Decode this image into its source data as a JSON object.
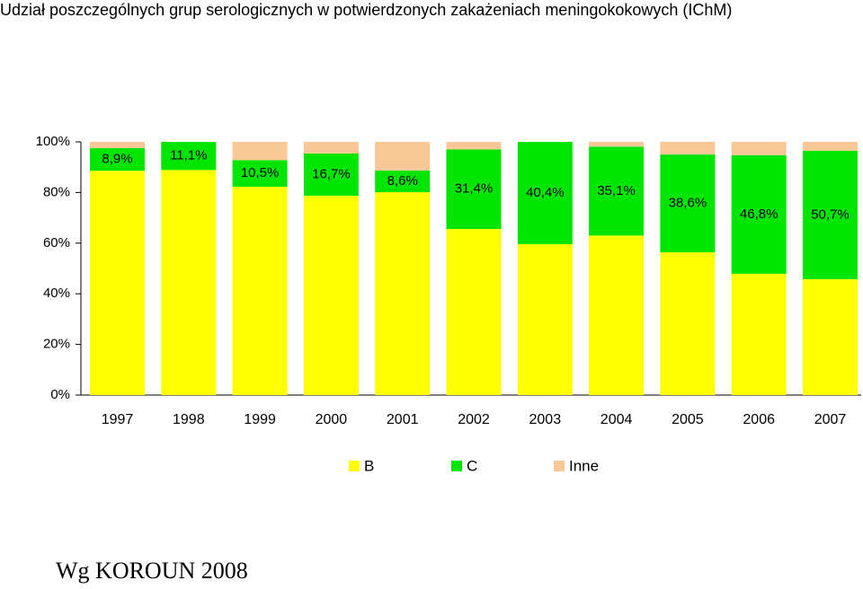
{
  "chart_data": {
    "type": "stacked_bar",
    "title": "Udział poszczególnych grup serologicznych w potwierdzonych zakażeniach meningokokowych (IChM)",
    "categories": [
      "1997",
      "1998",
      "1999",
      "2000",
      "2001",
      "2002",
      "2003",
      "2004",
      "2005",
      "2006",
      "2007"
    ],
    "series": [
      {
        "name": "B",
        "color": "#ffff00",
        "values": [
          88.6,
          88.9,
          82.3,
          78.7,
          80.1,
          65.6,
          59.6,
          63.0,
          56.4,
          47.9,
          45.8
        ]
      },
      {
        "name": "C",
        "color": "#00e600",
        "values": [
          8.9,
          11.1,
          10.5,
          16.7,
          8.6,
          31.4,
          40.4,
          35.1,
          38.6,
          46.8,
          50.7
        ],
        "value_labels": [
          "8,9%",
          "11,1%",
          "10,5%",
          "16,7%",
          "8,6%",
          "31,4%",
          "40,4%",
          "35,1%",
          "38,6%",
          "46,8%",
          "50,7%"
        ]
      },
      {
        "name": "Inne",
        "color": "#fac896",
        "values": [
          2.5,
          0,
          7.2,
          4.6,
          11.3,
          3.0,
          0,
          1.9,
          5.0,
          5.3,
          3.5
        ]
      }
    ],
    "ylim": [
      0,
      100
    ],
    "yticks": [
      {
        "value": 0,
        "label": "0%"
      },
      {
        "value": 20,
        "label": "20%"
      },
      {
        "value": 40,
        "label": "40%"
      },
      {
        "value": 60,
        "label": "60%"
      },
      {
        "value": 80,
        "label": "80%"
      },
      {
        "value": 100,
        "label": "100%"
      }
    ],
    "legend": "bottom",
    "source": "Wg KOROUN 2008"
  }
}
